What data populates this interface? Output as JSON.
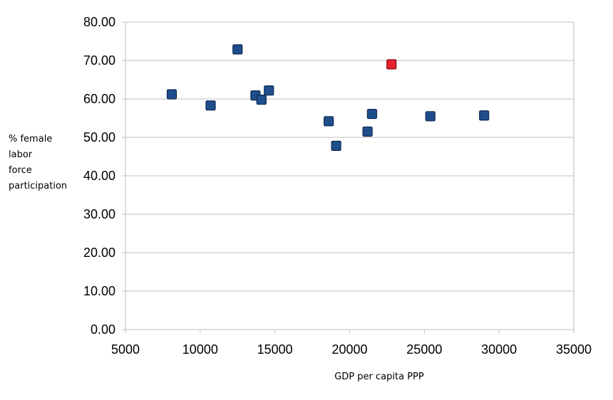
{
  "chart_data": {
    "type": "scatter",
    "title": "",
    "xlabel": "GDP per capita PPP",
    "ylabel": "% female labor force participation",
    "ylabel_lines": [
      "% female",
      "labor",
      "force",
      "participation"
    ],
    "xlim": [
      5000,
      35000
    ],
    "ylim": [
      0,
      80
    ],
    "x_ticks": [
      5000,
      10000,
      15000,
      20000,
      25000,
      30000,
      35000
    ],
    "x_tick_labels": [
      "5000",
      "10000",
      "15000",
      "20000",
      "25000",
      "30000",
      "35000"
    ],
    "y_ticks": [
      0,
      10,
      20,
      30,
      40,
      50,
      60,
      70,
      80
    ],
    "y_tick_labels": [
      "0.00",
      "10.00",
      "20.00",
      "30.00",
      "40.00",
      "50.00",
      "60.00",
      "70.00",
      "80.00"
    ],
    "grid": "horizontal",
    "legend": "none",
    "colors": {
      "default": "#1f4e8c",
      "highlight": "#e8222e",
      "grid": "#bfbfbf"
    },
    "points": [
      {
        "x": 8100,
        "y": 61.2,
        "highlight": false
      },
      {
        "x": 10700,
        "y": 58.3,
        "highlight": false
      },
      {
        "x": 12500,
        "y": 72.9,
        "highlight": false
      },
      {
        "x": 13700,
        "y": 60.9,
        "highlight": false
      },
      {
        "x": 14100,
        "y": 59.8,
        "highlight": false
      },
      {
        "x": 14600,
        "y": 62.2,
        "highlight": false
      },
      {
        "x": 18600,
        "y": 54.2,
        "highlight": false
      },
      {
        "x": 19100,
        "y": 47.8,
        "highlight": false
      },
      {
        "x": 21200,
        "y": 51.5,
        "highlight": false
      },
      {
        "x": 21500,
        "y": 56.1,
        "highlight": false
      },
      {
        "x": 22800,
        "y": 69.0,
        "highlight": true
      },
      {
        "x": 25400,
        "y": 55.5,
        "highlight": false
      },
      {
        "x": 29000,
        "y": 55.7,
        "highlight": false
      }
    ]
  }
}
